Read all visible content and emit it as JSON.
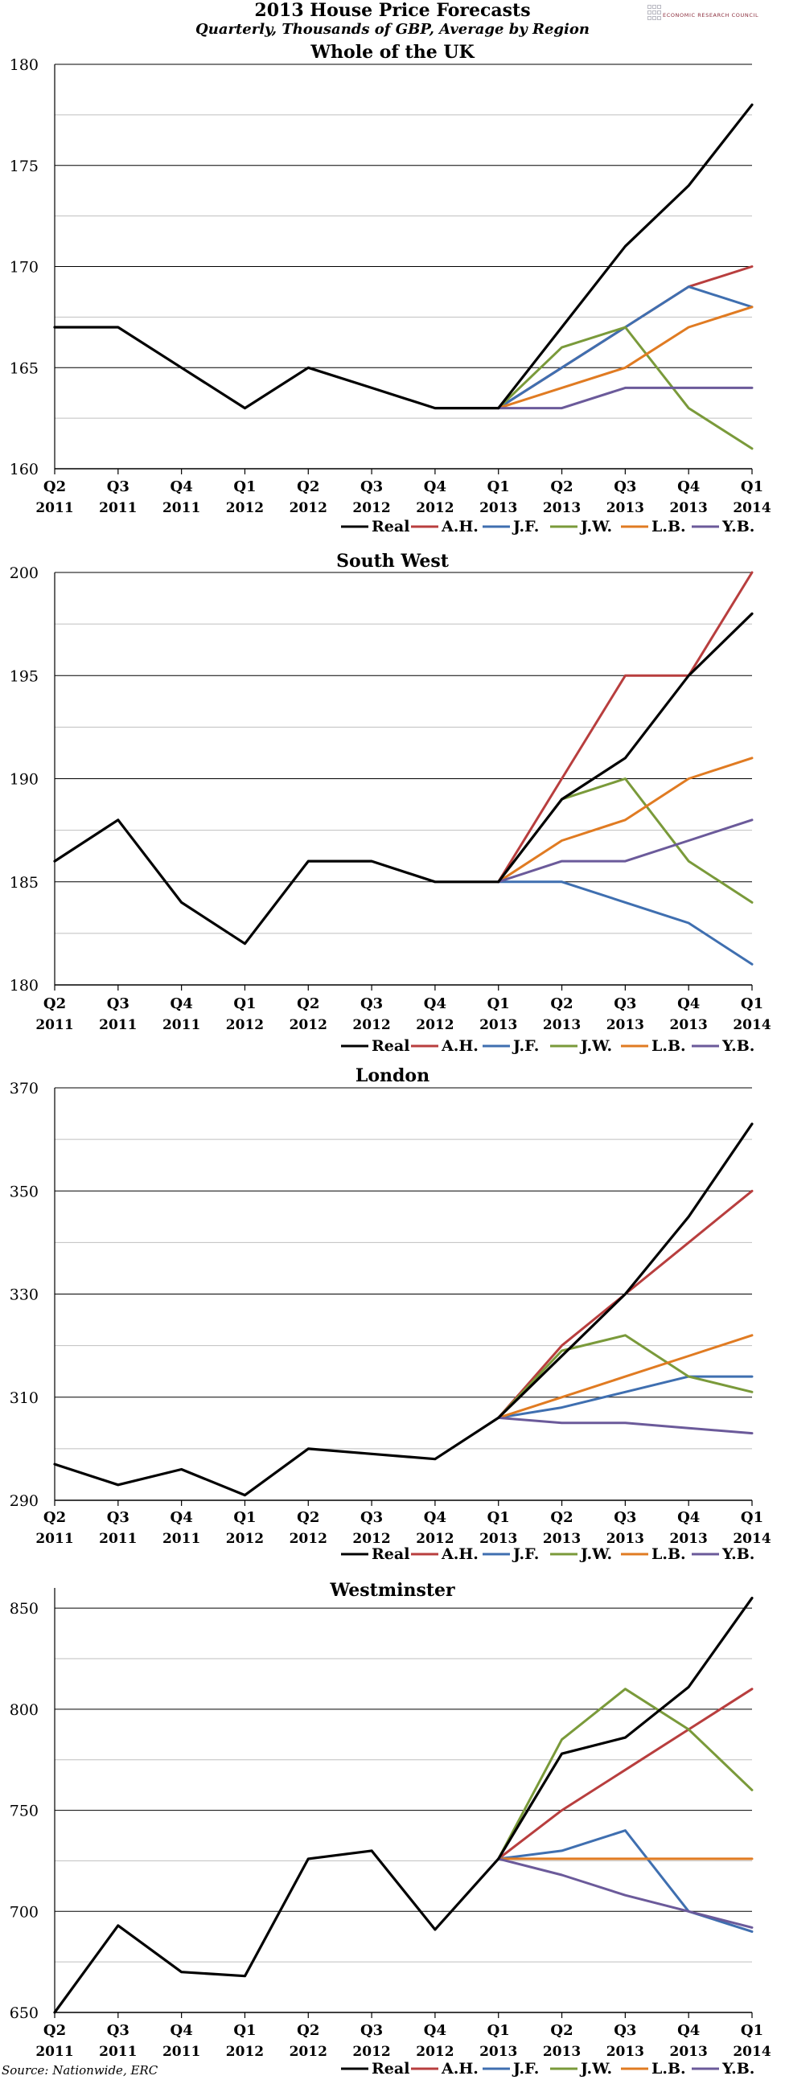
{
  "title": "2013 House Price Forecasts",
  "subtitle": "Quarterly, Thousands of GBP, Average by Region",
  "logo_text": "ECONOMIC RESEARCH COUNCIL",
  "source": "Source: Nationwide, ERC",
  "colors": {
    "Real": "#000000",
    "A.H.": "#b83e3e",
    "J.F.": "#3f6fb0",
    "J.W.": "#7a9a3a",
    "L.B.": "#e07b22",
    "Y.B.": "#6b5a9a",
    "grid": "#000000",
    "minor_grid": "#bfbfbf"
  },
  "chart_data": [
    {
      "type": "line",
      "title": "Whole of the UK",
      "categories": [
        [
          "Q2",
          "2011"
        ],
        [
          "Q3",
          "2011"
        ],
        [
          "Q4",
          "2011"
        ],
        [
          "Q1",
          "2012"
        ],
        [
          "Q2",
          "2012"
        ],
        [
          "Q3",
          "2012"
        ],
        [
          "Q4",
          "2012"
        ],
        [
          "Q1",
          "2013"
        ],
        [
          "Q2",
          "2013"
        ],
        [
          "Q3",
          "2013"
        ],
        [
          "Q4",
          "2013"
        ],
        [
          "Q1",
          "2014"
        ]
      ],
      "ylim": [
        160,
        180
      ],
      "yticks": [
        160,
        165,
        170,
        175,
        180
      ],
      "legend": [
        "Real",
        "A.H.",
        "J.F.",
        "J.W.",
        "L.B.",
        "Y.B."
      ],
      "series": [
        {
          "name": "Real",
          "values": [
            167,
            167,
            165,
            163,
            165,
            164,
            163,
            163,
            167,
            171,
            174,
            178
          ]
        },
        {
          "name": "A.H.",
          "values": [
            null,
            null,
            null,
            null,
            null,
            null,
            null,
            163,
            165,
            167,
            169,
            170
          ]
        },
        {
          "name": "J.F.",
          "values": [
            null,
            null,
            null,
            null,
            null,
            null,
            null,
            163,
            165,
            167,
            169,
            168
          ]
        },
        {
          "name": "J.W.",
          "values": [
            null,
            null,
            null,
            null,
            null,
            null,
            null,
            163,
            166,
            167,
            163,
            161
          ]
        },
        {
          "name": "L.B.",
          "values": [
            null,
            null,
            null,
            null,
            null,
            null,
            null,
            163,
            164,
            165,
            167,
            168
          ]
        },
        {
          "name": "Y.B.",
          "values": [
            null,
            null,
            null,
            null,
            null,
            null,
            null,
            163,
            163,
            164,
            164,
            164
          ]
        }
      ]
    },
    {
      "type": "line",
      "title": "South West",
      "categories": [
        [
          "Q2",
          "2011"
        ],
        [
          "Q3",
          "2011"
        ],
        [
          "Q4",
          "2011"
        ],
        [
          "Q1",
          "2012"
        ],
        [
          "Q2",
          "2012"
        ],
        [
          "Q3",
          "2012"
        ],
        [
          "Q4",
          "2012"
        ],
        [
          "Q1",
          "2013"
        ],
        [
          "Q2",
          "2013"
        ],
        [
          "Q3",
          "2013"
        ],
        [
          "Q4",
          "2013"
        ],
        [
          "Q1",
          "2014"
        ]
      ],
      "ylim": [
        180,
        200
      ],
      "yticks": [
        180,
        185,
        190,
        195,
        200
      ],
      "legend": [
        "Real",
        "A.H.",
        "J.F.",
        "J.W.",
        "L.B.",
        "Y.B."
      ],
      "series": [
        {
          "name": "Real",
          "values": [
            186,
            188,
            184,
            182,
            186,
            186,
            185,
            185,
            189,
            191,
            195,
            198
          ]
        },
        {
          "name": "A.H.",
          "values": [
            null,
            null,
            null,
            null,
            null,
            null,
            null,
            185,
            190,
            195,
            195,
            200
          ]
        },
        {
          "name": "J.F.",
          "values": [
            null,
            null,
            null,
            null,
            null,
            null,
            null,
            185,
            185,
            184,
            183,
            181
          ]
        },
        {
          "name": "J.W.",
          "values": [
            null,
            null,
            null,
            null,
            null,
            null,
            null,
            185,
            189,
            190,
            186,
            184
          ]
        },
        {
          "name": "L.B.",
          "values": [
            null,
            null,
            null,
            null,
            null,
            null,
            null,
            185,
            187,
            188,
            190,
            191
          ]
        },
        {
          "name": "Y.B.",
          "values": [
            null,
            null,
            null,
            null,
            null,
            null,
            null,
            185,
            186,
            186,
            187,
            188
          ]
        }
      ]
    },
    {
      "type": "line",
      "title": "London",
      "categories": [
        [
          "Q2",
          "2011"
        ],
        [
          "Q3",
          "2011"
        ],
        [
          "Q4",
          "2011"
        ],
        [
          "Q1",
          "2012"
        ],
        [
          "Q2",
          "2012"
        ],
        [
          "Q3",
          "2012"
        ],
        [
          "Q4",
          "2012"
        ],
        [
          "Q1",
          "2013"
        ],
        [
          "Q2",
          "2013"
        ],
        [
          "Q3",
          "2013"
        ],
        [
          "Q4",
          "2013"
        ],
        [
          "Q1",
          "2014"
        ]
      ],
      "ylim": [
        290,
        370
      ],
      "yticks": [
        290,
        310,
        330,
        350,
        370
      ],
      "legend": [
        "Real",
        "A.H.",
        "J.F.",
        "J.W.",
        "L.B.",
        "Y.B."
      ],
      "series": [
        {
          "name": "Real",
          "values": [
            297,
            293,
            296,
            291,
            300,
            299,
            298,
            306,
            318,
            330,
            345,
            363
          ]
        },
        {
          "name": "A.H.",
          "values": [
            null,
            null,
            null,
            null,
            null,
            null,
            null,
            306,
            320,
            330,
            340,
            350
          ]
        },
        {
          "name": "J.F.",
          "values": [
            null,
            null,
            null,
            null,
            null,
            null,
            null,
            306,
            308,
            311,
            314,
            314
          ]
        },
        {
          "name": "J.W.",
          "values": [
            null,
            null,
            null,
            null,
            null,
            null,
            null,
            306,
            319,
            322,
            314,
            311
          ]
        },
        {
          "name": "L.B.",
          "values": [
            null,
            null,
            null,
            null,
            null,
            null,
            null,
            306,
            310,
            314,
            318,
            322
          ]
        },
        {
          "name": "Y.B.",
          "values": [
            null,
            null,
            null,
            null,
            null,
            null,
            null,
            306,
            305,
            305,
            304,
            303
          ]
        }
      ]
    },
    {
      "type": "line",
      "title": "Westminster",
      "categories": [
        [
          "Q2",
          "2011"
        ],
        [
          "Q3",
          "2011"
        ],
        [
          "Q4",
          "2011"
        ],
        [
          "Q1",
          "2012"
        ],
        [
          "Q2",
          "2012"
        ],
        [
          "Q3",
          "2012"
        ],
        [
          "Q4",
          "2012"
        ],
        [
          "Q1",
          "2013"
        ],
        [
          "Q2",
          "2013"
        ],
        [
          "Q3",
          "2013"
        ],
        [
          "Q4",
          "2013"
        ],
        [
          "Q1",
          "2014"
        ]
      ],
      "ylim": [
        650,
        860
      ],
      "yticks": [
        650,
        700,
        750,
        800,
        850
      ],
      "legend": [
        "Real",
        "A.H.",
        "J.F.",
        "J.W.",
        "L.B.",
        "Y.B."
      ],
      "series": [
        {
          "name": "Real",
          "values": [
            650,
            693,
            670,
            668,
            726,
            730,
            691,
            726,
            778,
            786,
            811,
            855
          ]
        },
        {
          "name": "A.H.",
          "values": [
            null,
            null,
            null,
            null,
            null,
            null,
            null,
            726,
            750,
            770,
            790,
            810
          ]
        },
        {
          "name": "J.F.",
          "values": [
            null,
            null,
            null,
            null,
            null,
            null,
            null,
            726,
            730,
            740,
            700,
            690
          ]
        },
        {
          "name": "J.W.",
          "values": [
            null,
            null,
            null,
            null,
            null,
            null,
            null,
            726,
            785,
            810,
            790,
            760
          ]
        },
        {
          "name": "L.B.",
          "values": [
            null,
            null,
            null,
            null,
            null,
            null,
            null,
            726,
            726,
            726,
            726,
            726
          ]
        },
        {
          "name": "Y.B.",
          "values": [
            null,
            null,
            null,
            null,
            null,
            null,
            null,
            726,
            718,
            708,
            700,
            692
          ]
        }
      ]
    }
  ]
}
